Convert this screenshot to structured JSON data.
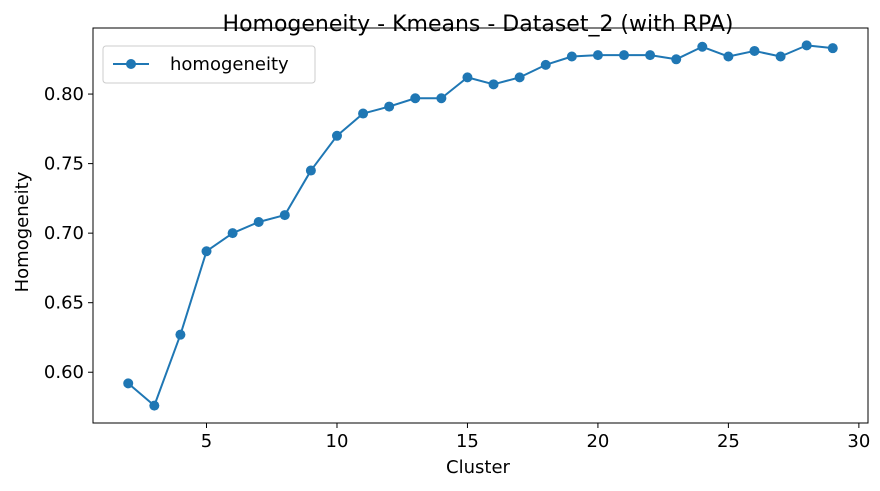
{
  "chart_data": {
    "type": "line",
    "title": "Homogeneity - Kmeans - Dataset_2 (with RPA)",
    "xlabel": "Cluster",
    "ylabel": "Homogeneity",
    "xlim": [
      0.65,
      30.35
    ],
    "ylim": [
      0.5635,
      0.8475
    ],
    "xticks": [
      5,
      10,
      15,
      20,
      25,
      30
    ],
    "yticks": [
      0.6,
      0.65,
      0.7,
      0.75,
      0.8
    ],
    "xtick_labels": [
      "5",
      "10",
      "15",
      "20",
      "25",
      "30"
    ],
    "ytick_labels": [
      "0.60",
      "0.65",
      "0.70",
      "0.75",
      "0.80"
    ],
    "grid": false,
    "legend_position": "top-left",
    "series": [
      {
        "name": "homogeneity",
        "color": "#1f77b4",
        "marker": "circle",
        "x": [
          2,
          3,
          4,
          5,
          6,
          7,
          8,
          9,
          10,
          11,
          12,
          13,
          14,
          15,
          16,
          17,
          18,
          19,
          20,
          21,
          22,
          23,
          24,
          25,
          26,
          27,
          28,
          29
        ],
        "y": [
          0.592,
          0.576,
          0.627,
          0.687,
          0.7,
          0.708,
          0.713,
          0.745,
          0.77,
          0.786,
          0.791,
          0.797,
          0.797,
          0.812,
          0.807,
          0.812,
          0.821,
          0.827,
          0.828,
          0.828,
          0.828,
          0.825,
          0.834,
          0.827,
          0.831,
          0.827,
          0.835,
          0.833
        ]
      }
    ]
  }
}
